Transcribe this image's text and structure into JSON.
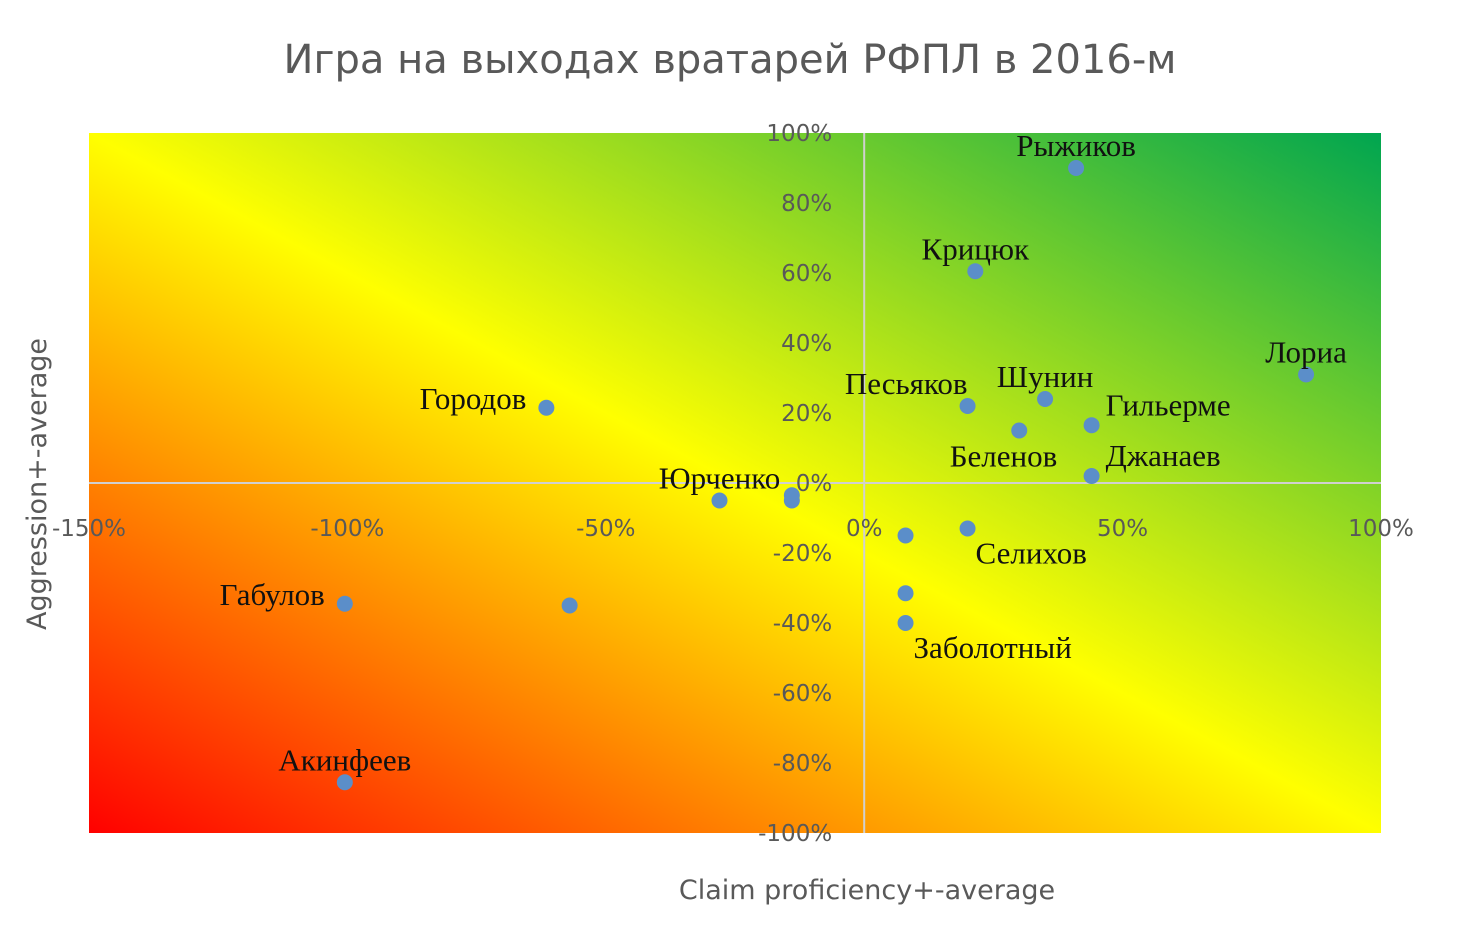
{
  "chart_data": {
    "type": "scatter",
    "title": "Игра на выходах вратарей РФПЛ в 2016-м",
    "xlabel": "Claim proficiency+-average",
    "ylabel": "Aggression+-average",
    "xlim": [
      -1.5,
      1.0
    ],
    "ylim": [
      -1.0,
      1.0
    ],
    "x_ticks": [
      {
        "value": -1.5,
        "label": "-150%"
      },
      {
        "value": -1.0,
        "label": "-100%"
      },
      {
        "value": -0.5,
        "label": "-50%"
      },
      {
        "value": 0.0,
        "label": "0%"
      },
      {
        "value": 0.5,
        "label": "50%"
      },
      {
        "value": 1.0,
        "label": "100%"
      }
    ],
    "y_ticks": [
      {
        "value": 1.0,
        "label": "100%"
      },
      {
        "value": 0.8,
        "label": "80%"
      },
      {
        "value": 0.6,
        "label": "60%"
      },
      {
        "value": 0.4,
        "label": "40%"
      },
      {
        "value": 0.2,
        "label": "20%"
      },
      {
        "value": 0.0,
        "label": "0%"
      },
      {
        "value": -0.2,
        "label": "-20%"
      },
      {
        "value": -0.4,
        "label": "-40%"
      },
      {
        "value": -0.6,
        "label": "-60%"
      },
      {
        "value": -0.8,
        "label": "-80%"
      },
      {
        "value": -1.0,
        "label": "-100%"
      }
    ],
    "background_gradient": [
      "#ff0000",
      "#ffff00",
      "#00a550"
    ],
    "point_color": "#5B8EC9",
    "points": [
      {
        "x": 0.41,
        "y": 0.9,
        "label": "Рыжиков",
        "pos": "above"
      },
      {
        "x": 0.215,
        "y": 0.605,
        "label": "Крицюк",
        "pos": "above"
      },
      {
        "x": 0.855,
        "y": 0.31,
        "label": "Лориа",
        "pos": "above"
      },
      {
        "x": 0.35,
        "y": 0.24,
        "label": "Шунин",
        "pos": "above"
      },
      {
        "x": 0.2,
        "y": 0.22,
        "label": "Песьяков",
        "pos": "above-left"
      },
      {
        "x": 0.44,
        "y": 0.165,
        "label": "Гильерме",
        "pos": "right"
      },
      {
        "x": 0.3,
        "y": 0.15,
        "label": "Беленов",
        "pos": "below-left"
      },
      {
        "x": 0.44,
        "y": 0.02,
        "label": "Джанаев",
        "pos": "right"
      },
      {
        "x": -0.615,
        "y": 0.215,
        "label": "Городов",
        "pos": "left"
      },
      {
        "x": -0.28,
        "y": -0.05,
        "label": "Юрченко",
        "pos": "above"
      },
      {
        "x": -0.14,
        "y": -0.035,
        "label": "",
        "pos": "none"
      },
      {
        "x": -0.14,
        "y": -0.05,
        "label": "",
        "pos": "none"
      },
      {
        "x": 0.08,
        "y": -0.15,
        "label": "",
        "pos": "none"
      },
      {
        "x": 0.2,
        "y": -0.13,
        "label": "Селихов",
        "pos": "below-right"
      },
      {
        "x": -1.005,
        "y": -0.345,
        "label": "Габулов",
        "pos": "left"
      },
      {
        "x": -0.57,
        "y": -0.35,
        "label": "",
        "pos": "none"
      },
      {
        "x": 0.08,
        "y": -0.315,
        "label": "",
        "pos": "none"
      },
      {
        "x": 0.08,
        "y": -0.4,
        "label": "Заболотный",
        "pos": "below-right"
      },
      {
        "x": -1.005,
        "y": -0.855,
        "label": "Акинфеев",
        "pos": "above"
      }
    ]
  }
}
